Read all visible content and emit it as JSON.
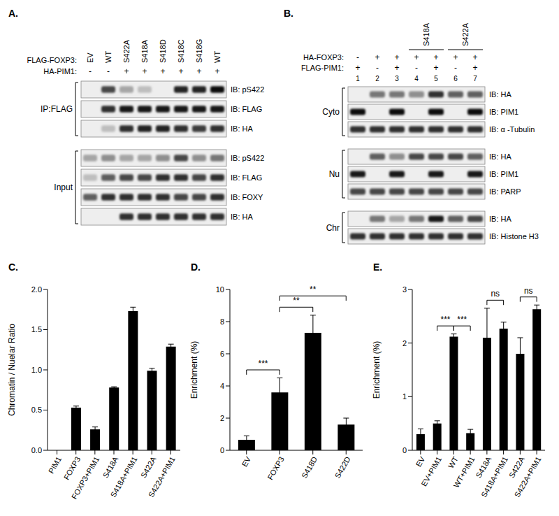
{
  "blots": [
    {
      "panel": "A.",
      "header_rows": [
        {
          "label": "FLAG-FOXP3:",
          "lanes": [
            "EV",
            "WT",
            "S422A",
            "S418A",
            "S418D",
            "S418C",
            "S418G",
            "WT"
          ]
        },
        {
          "label": "HA-PIM1:",
          "lanes": [
            "-",
            "-",
            "+",
            "+",
            "+",
            "+",
            "+",
            "+"
          ]
        }
      ],
      "groups": [
        {
          "label": "IP:FLAG",
          "rows": [
            {
              "label": "IB: pS422",
              "bands": [
                0,
                0.7,
                0.3,
                0.2,
                0,
                0.85,
                0.85,
                0.95
              ]
            },
            {
              "label": "IB: FLAG",
              "bands": [
                0,
                0.8,
                0.9,
                0.9,
                0.9,
                0.9,
                0.9,
                0.9
              ]
            },
            {
              "label": "IB: HA",
              "bands": [
                0,
                0.2,
                0.8,
                0.85,
                0.85,
                0.8,
                0.75,
                0.8
              ]
            }
          ]
        },
        {
          "label": "Input",
          "rows": [
            {
              "label": "IB: pS422",
              "bands": [
                0.3,
                0.4,
                0.3,
                0.3,
                0.4,
                0.7,
                0.4,
                0.5
              ]
            },
            {
              "label": "IB: FLAG",
              "bands": [
                0.2,
                0.6,
                0.7,
                0.7,
                0.8,
                0.8,
                0.7,
                0.8
              ]
            },
            {
              "label": "IB: FOXY",
              "bands": [
                0.6,
                0.8,
                0.8,
                0.8,
                0.8,
                0.7,
                0.7,
                0.8
              ]
            },
            {
              "label": "IB: HA",
              "bands": [
                0,
                0,
                0.8,
                0.8,
                0.8,
                0.8,
                0.8,
                0.8
              ]
            }
          ]
        }
      ]
    },
    {
      "panel": "B.",
      "mutant_labels": [
        {
          "label": "S418A",
          "lanes": [
            4,
            5
          ]
        },
        {
          "label": "S422A",
          "lanes": [
            6,
            7
          ]
        }
      ],
      "header_rows": [
        {
          "label": "HA-FOXP3:",
          "lanes": [
            "-",
            "+",
            "+",
            "+",
            "+",
            "+",
            "+"
          ]
        },
        {
          "label": "FLAG-PIM1:",
          "lanes": [
            "+",
            "-",
            "+",
            "-",
            "+",
            "-",
            "+"
          ]
        }
      ],
      "lane_numbers": [
        1,
        2,
        3,
        4,
        5,
        6,
        7
      ],
      "groups": [
        {
          "label": "Cyto",
          "rows": [
            {
              "label": "IB: HA",
              "bands": [
                0,
                0.5,
                0.5,
                0.4,
                0.8,
                0.6,
                0.6
              ]
            },
            {
              "label": "IB: PIM1",
              "bands": [
                0.95,
                0,
                0.95,
                0,
                0.95,
                0,
                0.95
              ]
            },
            {
              "label": "IB: α -Tubulin",
              "bands": [
                0.8,
                0.8,
                0.8,
                0.8,
                0.8,
                0.8,
                0.8
              ]
            }
          ]
        },
        {
          "label": "Nu",
          "rows": [
            {
              "label": "IB: HA",
              "bands": [
                0,
                0.6,
                0.4,
                0.7,
                0.7,
                0.7,
                0.6
              ]
            },
            {
              "label": "IB: PIM1",
              "bands": [
                0.9,
                0,
                0.9,
                0,
                0.9,
                0,
                0.9
              ]
            },
            {
              "label": "IB: PARP",
              "bands": [
                0.7,
                0.7,
                0.7,
                0.7,
                0.7,
                0.7,
                0.7
              ]
            }
          ]
        },
        {
          "label": "Chr",
          "rows": [
            {
              "label": "IB: HA",
              "bands": [
                0,
                0.5,
                0.3,
                0.5,
                0.9,
                0.6,
                0.7
              ]
            },
            {
              "label": "IB: Histone H3",
              "bands": [
                0.8,
                0.8,
                0.8,
                0.8,
                0.8,
                0.8,
                0.8
              ]
            }
          ]
        }
      ]
    }
  ],
  "chart_data": [
    {
      "type": "bar",
      "title": "C.",
      "y_label": "Chromatin / Nuelar Ratio",
      "categories": [
        "PIM1",
        "FOXP3",
        "FOXP3+PIM1",
        "S418A",
        "S418A+PIM1",
        "S422A",
        "S422A+PIM1"
      ],
      "values": [
        0,
        0.53,
        0.26,
        0.78,
        1.73,
        0.99,
        1.29
      ],
      "errors": [
        0,
        0.02,
        0.03,
        0.01,
        0.05,
        0.03,
        0.03
      ],
      "color": "#000000",
      "ylim": [
        0,
        2
      ],
      "yticks": [
        {
          "value": 0,
          "label": "0.0"
        },
        {
          "value": 0.5,
          "label": "0.5"
        },
        {
          "value": 1,
          "label": "1.0"
        },
        {
          "value": 1.5,
          "label": "1.5"
        },
        {
          "value": 2,
          "label": "2.0"
        }
      ],
      "significance": []
    },
    {
      "type": "bar",
      "title": "D.",
      "y_label": "Enrichment (%)",
      "categories": [
        "EV",
        "FOXP3",
        "S418D",
        "S422D"
      ],
      "values": [
        0.65,
        3.6,
        7.3,
        1.6
      ],
      "errors": [
        0.25,
        0.9,
        1.1,
        0.4
      ],
      "color": "#000000",
      "ylim": [
        0,
        10
      ],
      "yticks": [
        0,
        2,
        4,
        6,
        8,
        10
      ],
      "significance": [
        {
          "from": "EV",
          "to": "FOXP3",
          "label": "***"
        },
        {
          "from": "FOXP3",
          "to": "S418D",
          "label": "**"
        },
        {
          "from": "FOXP3",
          "to": "S422D",
          "label": "**"
        }
      ]
    },
    {
      "type": "bar",
      "title": "E.",
      "y_label": "Enrichment (%)",
      "categories": [
        "EV",
        "EV+PIM1",
        "WT",
        "WT+PIM1",
        "S418A",
        "S418A+PIM1",
        "S422A",
        "S422A+PIM1"
      ],
      "values": [
        0.3,
        0.5,
        2.12,
        0.32,
        2.1,
        2.27,
        1.8,
        2.63
      ],
      "errors": [
        0.1,
        0.05,
        0.05,
        0.07,
        0.55,
        0.12,
        0.3,
        0.08
      ],
      "color": "#000000",
      "ylim": [
        0,
        3
      ],
      "yticks": [
        0,
        1,
        2,
        3
      ],
      "significance": [
        {
          "from": "EV+PIM1",
          "to": "WT",
          "label": "***"
        },
        {
          "from": "WT",
          "to": "WT+PIM1",
          "label": "***"
        },
        {
          "from": "S418A",
          "to": "S418A+PIM1",
          "label": "ns"
        },
        {
          "from": "S422A",
          "to": "S422A+PIM1",
          "label": "ns"
        }
      ]
    }
  ]
}
